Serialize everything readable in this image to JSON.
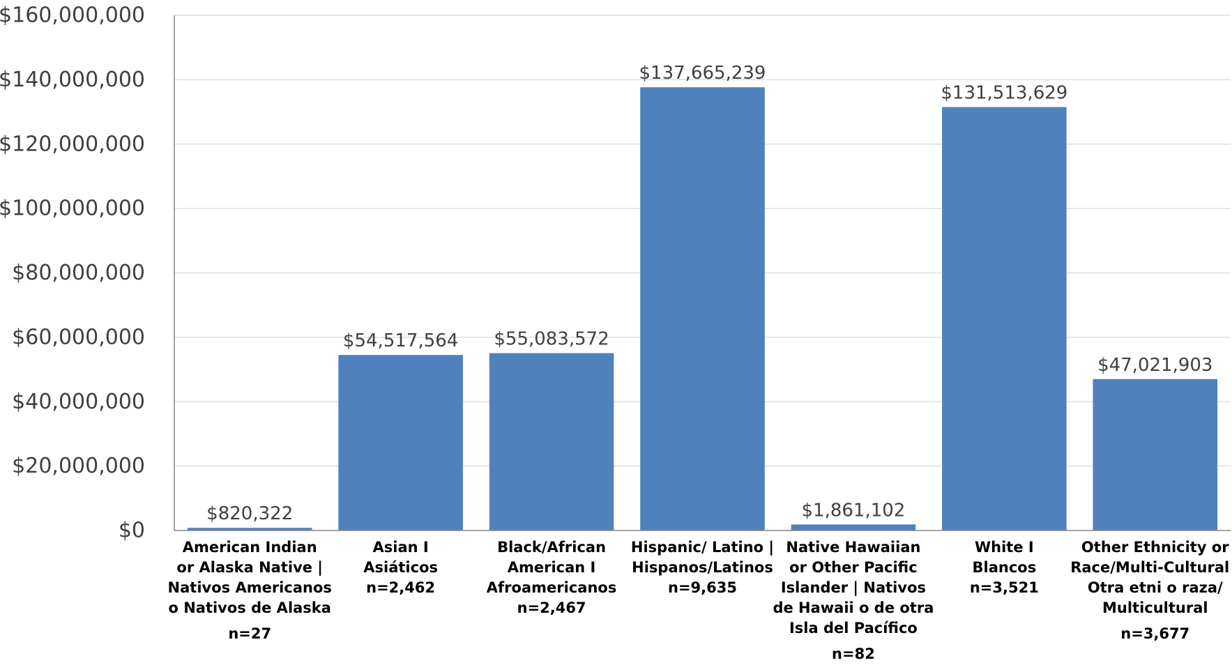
{
  "chart_data": {
    "type": "bar",
    "categories": [
      [
        "American Indian",
        "or Alaska Native |",
        "Nativos Americanos",
        "o Nativos de Alaska"
      ],
      [
        "Asian I",
        "Asiáticos"
      ],
      [
        "Black/African",
        "American I",
        "Afroamericanos"
      ],
      [
        "Hispanic/ Latino |",
        "Hispanos/Latinos"
      ],
      [
        "Native Hawaiian",
        "or Other Pacific",
        "Islander | Nativos",
        "de Hawaii o de otra",
        "Isla del Pacífico"
      ],
      [
        "White I",
        "Blancos"
      ],
      [
        "Other Ethnicity or",
        "Race/Multi-Cultural I",
        "Otra etni o raza/",
        "Multicultural"
      ]
    ],
    "counts": [
      "n=27",
      "n=2,462",
      "n=2,467",
      "n=9,635",
      "n=82",
      "n=3,521",
      "n=3,677"
    ],
    "values": [
      820322,
      54517564,
      55083572,
      137665239,
      1861102,
      131513629,
      47021903
    ],
    "value_labels": [
      "$820,322",
      "$54,517,564",
      "$55,083,572",
      "$137,665,239",
      "$1,861,102",
      "$131,513,629",
      "$47,021,903"
    ],
    "ylim": [
      0,
      160000000
    ],
    "y_ticks": [
      0,
      20000000,
      40000000,
      60000000,
      80000000,
      100000000,
      120000000,
      140000000,
      160000000
    ],
    "y_tick_labels": [
      "$0",
      "$20,000,000",
      "$40,000,000",
      "$60,000,000",
      "$80,000,000",
      "$100,000,000",
      "$120,000,000",
      "$140,000,000",
      "$160,000,000"
    ],
    "grid": true,
    "legend": false,
    "colors": {
      "bar": "#4f81bd",
      "grid": "#d9d9d9",
      "axis": "#868686",
      "tick_text": "#404040",
      "label_text": "#000000"
    }
  }
}
